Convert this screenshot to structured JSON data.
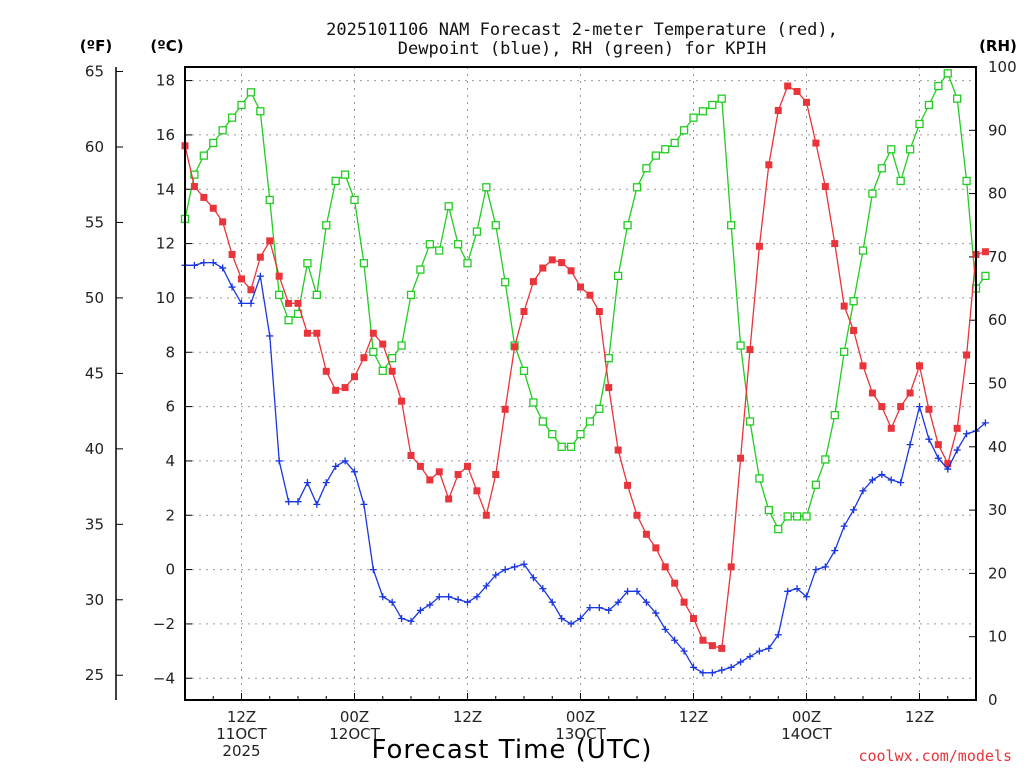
{
  "chart_data": {
    "type": "line",
    "title_line1": "2025101106 NAM Forecast 2-meter Temperature (red),",
    "title_line2": "Dewpoint (blue), RH (green) for KPIH",
    "xlabel": "Forecast Time (UTC)",
    "credit": "coolwx.com/models",
    "units": {
      "fahrenheit": "(ºF)",
      "celsius": "(ºC)",
      "rh": "(RH)"
    },
    "hours_per_step": 1,
    "x_range": [
      0,
      84
    ],
    "celsius_range": [
      -4.8,
      18.5
    ],
    "rh_range": [
      0,
      100
    ],
    "celsius_ticks": [
      -4,
      -2,
      0,
      2,
      4,
      6,
      8,
      10,
      12,
      14,
      16,
      18
    ],
    "fahrenheit_ticks": [
      25,
      30,
      35,
      40,
      45,
      50,
      55,
      60,
      65
    ],
    "rh_ticks": [
      0,
      10,
      20,
      30,
      40,
      50,
      60,
      70,
      80,
      90,
      100
    ],
    "x_ticks": [
      {
        "hour": 6,
        "lines": [
          "12Z",
          "11OCT",
          "2025"
        ]
      },
      {
        "hour": 18,
        "lines": [
          "00Z",
          "12OCT"
        ]
      },
      {
        "hour": 30,
        "lines": [
          "12Z"
        ]
      },
      {
        "hour": 42,
        "lines": [
          "00Z",
          "13OCT"
        ]
      },
      {
        "hour": 54,
        "lines": [
          "12Z"
        ]
      },
      {
        "hour": 66,
        "lines": [
          "00Z",
          "14OCT"
        ]
      },
      {
        "hour": 78,
        "lines": [
          "12Z"
        ]
      }
    ],
    "series": [
      {
        "name": "2-meter Temperature",
        "axis": "celsius",
        "color": "#e8343a",
        "marker": "filled-square",
        "values": [
          15.6,
          14.1,
          13.7,
          13.3,
          12.8,
          11.6,
          10.7,
          10.3,
          11.5,
          12.1,
          10.8,
          9.8,
          9.8,
          8.7,
          8.7,
          7.3,
          6.6,
          6.7,
          7.1,
          7.8,
          8.7,
          8.3,
          7.3,
          6.2,
          4.2,
          3.8,
          3.3,
          3.6,
          2.6,
          3.5,
          3.8,
          2.9,
          2.0,
          3.5,
          5.9,
          8.2,
          9.5,
          10.6,
          11.1,
          11.4,
          11.3,
          11.0,
          10.4,
          10.1,
          9.5,
          6.7,
          4.4,
          3.1,
          2.0,
          1.3,
          0.8,
          0.1,
          -0.5,
          -1.2,
          -1.8,
          -2.6,
          -2.8,
          -2.9,
          0.1,
          4.1,
          8.1,
          11.9,
          14.9,
          16.9,
          17.8,
          17.6,
          17.2,
          15.7,
          14.1,
          12.0,
          9.7,
          8.8,
          7.5,
          6.5,
          6.0,
          5.2,
          6.0,
          6.5,
          7.5,
          5.9,
          4.6,
          3.9,
          5.2,
          7.9,
          11.6,
          11.7
        ]
      },
      {
        "name": "Dewpoint",
        "axis": "celsius",
        "color": "#1a36e0",
        "marker": "plus",
        "values": [
          11.2,
          11.2,
          11.3,
          11.3,
          11.1,
          10.4,
          9.8,
          9.8,
          10.8,
          8.6,
          4.0,
          2.5,
          2.5,
          3.2,
          2.4,
          3.2,
          3.8,
          4.0,
          3.6,
          2.4,
          0.0,
          -1.0,
          -1.2,
          -1.8,
          -1.9,
          -1.5,
          -1.3,
          -1.0,
          -1.0,
          -1.1,
          -1.2,
          -1.0,
          -0.6,
          -0.2,
          0.0,
          0.1,
          0.2,
          -0.3,
          -0.7,
          -1.2,
          -1.8,
          -2.0,
          -1.8,
          -1.4,
          -1.4,
          -1.5,
          -1.2,
          -0.8,
          -0.8,
          -1.2,
          -1.6,
          -2.2,
          -2.6,
          -3.0,
          -3.6,
          -3.8,
          -3.8,
          -3.7,
          -3.6,
          -3.4,
          -3.2,
          -3.0,
          -2.9,
          -2.4,
          -0.8,
          -0.7,
          -1.0,
          0.0,
          0.1,
          0.7,
          1.6,
          2.2,
          2.9,
          3.3,
          3.5,
          3.3,
          3.2,
          4.6,
          6.0,
          4.8,
          4.1,
          3.7,
          4.4,
          5.0,
          5.1,
          5.4
        ]
      },
      {
        "name": "RH",
        "axis": "rh",
        "color": "#22cc22",
        "marker": "open-square",
        "values": [
          76,
          83,
          86,
          88,
          90,
          92,
          94,
          96,
          93,
          79,
          64,
          60,
          61,
          69,
          64,
          75,
          82,
          83,
          79,
          69,
          55,
          52,
          54,
          56,
          64,
          68,
          72,
          71,
          78,
          72,
          69,
          74,
          81,
          75,
          66,
          56,
          52,
          47,
          44,
          42,
          40,
          40,
          42,
          44,
          46,
          54,
          67,
          75,
          81,
          84,
          86,
          87,
          88,
          90,
          92,
          93,
          94,
          95,
          75,
          56,
          44,
          35,
          30,
          27,
          29,
          29,
          29,
          34,
          38,
          45,
          55,
          63,
          71,
          80,
          84,
          87,
          82,
          87,
          91,
          94,
          97,
          99,
          95,
          82,
          65,
          67
        ]
      }
    ]
  }
}
